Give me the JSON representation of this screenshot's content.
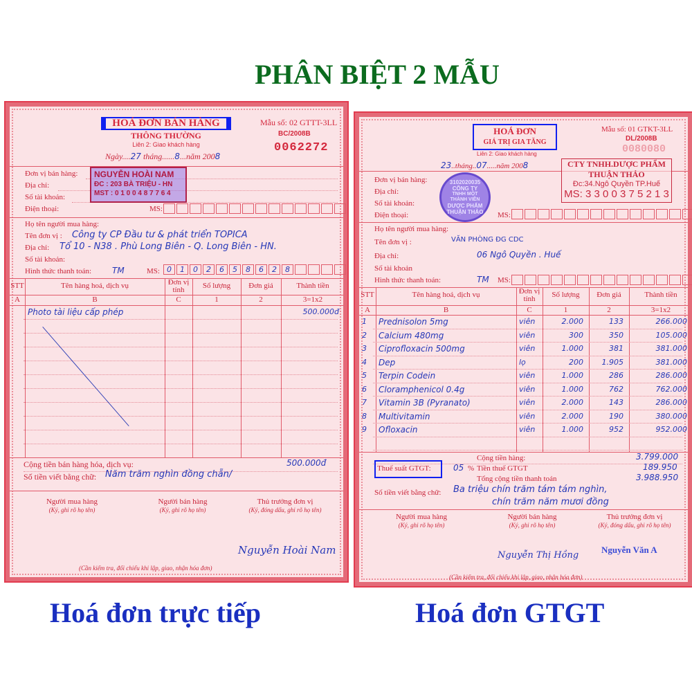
{
  "title": "PHÂN BIỆT 2 MẪU",
  "captions": {
    "left": "Hoá đơn trực tiếp",
    "right": "Hoá đơn GTGT"
  },
  "colors": {
    "title": "#0b6b1e",
    "caption": "#1a2fc0",
    "highlight_box": "#1020f0",
    "invoice_red": "#d4283d",
    "ink": "#2638b8"
  },
  "left_invoice": {
    "title": "HOÁ ĐƠN BÁN HÀNG",
    "subtitle": "THÔNG THƯỜNG",
    "copy": "Liên 2: Giao khách hàng",
    "form_no": "Mẫu số: 02 GTTT-3LL",
    "series": "BC/2008B",
    "number": "0062272",
    "date": {
      "day_label": "Ngày",
      "day": "27",
      "month_label": "tháng",
      "month": "8",
      "year_label": "năm 200",
      "year": "8"
    },
    "seller_labels": [
      "Đơn vị bán hàng:",
      "Địa chỉ:",
      "Số tài khoản:",
      "Điện thoại:"
    ],
    "ms_label": "MS:",
    "seller_stamp": {
      "name": "NGUYỄN HOÀI NAM",
      "address": "ĐC : 203 BÀ TRIỆU - HN",
      "tax": "MST : 0 1 0 0 4 8 7 7 6 4"
    },
    "buyer": {
      "name_label": "Họ tên người mua hàng:",
      "unit_label": "Tên đơn vị :",
      "unit": "Công ty CP Đầu tư & phát triển TOPICA",
      "address_label": "Địa chỉ:",
      "address": "Tổ 10 - N38 . Phù Long Biên - Q. Long Biên - HN.",
      "account_label": "Số tài khoản:",
      "payment_label": "Hình thức thanh toán:",
      "payment": "TM",
      "ms_digits": [
        "0",
        "1",
        "0",
        "2",
        "6",
        "5",
        "8",
        "6",
        "2",
        "8"
      ]
    },
    "table": {
      "headers": [
        "STT",
        "Tên hàng hoá, dịch vụ",
        "Đơn vị tính",
        "Số lượng",
        "Đơn giá",
        "Thành tiền"
      ],
      "codes": [
        "A",
        "B",
        "C",
        "1",
        "2",
        "3=1x2"
      ],
      "rows": [
        [
          "",
          "Photo tài liệu cấp phép",
          "",
          "",
          "",
          "500.000đ"
        ]
      ]
    },
    "total_label": "Cộng tiền bán hàng hóa, dịch vụ:",
    "total": "500.000đ",
    "words_label": "Số tiền viết bằng chữ:",
    "words": "Năm trăm nghìn đồng chẵn/",
    "signers": [
      {
        "role": "Người mua hàng",
        "note": "(Ký, ghi rõ họ tên)"
      },
      {
        "role": "Người bán hàng",
        "note": "(Ký, ghi rõ họ tên)"
      },
      {
        "role": "Thủ trưởng đơn vị",
        "note": "(Ký, đóng dấu, ghi rõ họ tên)"
      }
    ],
    "signature_name": "Nguyễn Hoài Nam",
    "footer": "(Cần kiểm tra, đối chiếu khi lập, giao, nhận hóa đơn)"
  },
  "right_invoice": {
    "title": "HOÁ ĐƠN",
    "subtitle": "GIÁ TRỊ GIA TĂNG",
    "copy": "Liên 2: Giao khách hàng",
    "form_no": "Mẫu số: 01 GTKT-3LL",
    "series": "DL/2008B",
    "number": "0080080",
    "date": {
      "day": "23",
      "month_label": "tháng",
      "month": "07",
      "year_label": "năm 200",
      "year": "8"
    },
    "seller_labels": [
      "Đơn vị bán hàng:",
      "Địa chỉ:",
      "Số tài khoản:",
      "Điện thoại:"
    ],
    "ms_label": "MS:",
    "seal": {
      "lines": [
        "3102020035",
        "CÔNG TY",
        "TNHH MỘT THÀNH VIÊN",
        "DƯỢC PHẨM",
        "THUẬN THẢO"
      ]
    },
    "seller_stamp": {
      "line1": "CTY TNHH.DƯỢC PHẨM",
      "line2": "THUẬN THẢO",
      "address": "Đc:34.Ngô Quyền TP.Huế",
      "tax": "MS: 3 3 0 0 3 7 5 2 1 3"
    },
    "buyer": {
      "name_label": "Họ tên người mua hàng:",
      "unit_label": "Tên đơn vị :",
      "unit": "VĂN PHÒNG ĐG CDC",
      "address_label": "Địa chỉ:",
      "address": "06 Ngô Quyền . Huế",
      "account_label": "Số tài khoản",
      "payment_label": "Hình thức thanh toán:",
      "payment": "TM"
    },
    "table": {
      "headers": [
        "STT",
        "Tên hàng hoá, dịch vụ",
        "Đơn vị tính",
        "Số lượng",
        "Đơn giá",
        "Thành tiền"
      ],
      "codes": [
        "A",
        "B",
        "C",
        "1",
        "2",
        "3=1x2"
      ],
      "rows": [
        [
          "1",
          "Prednisolon 5mg",
          "viên",
          "2.000",
          "133",
          "266.000"
        ],
        [
          "2",
          "Calcium 480mg",
          "viên",
          "300",
          "350",
          "105.000"
        ],
        [
          "3",
          "Ciprofloxacin 500mg",
          "viên",
          "1.000",
          "381",
          "381.000"
        ],
        [
          "4",
          "Dep",
          "lọ",
          "200",
          "1.905",
          "381.000"
        ],
        [
          "5",
          "Terpin Codein",
          "viên",
          "1.000",
          "286",
          "286.000"
        ],
        [
          "6",
          "Cloramphenicol 0.4g",
          "viên",
          "1.000",
          "762",
          "762.000"
        ],
        [
          "7",
          "Vitamin 3B (Pyranato)",
          "viên",
          "2.000",
          "143",
          "286.000"
        ],
        [
          "8",
          "Multivitamin",
          "viên",
          "2.000",
          "190",
          "380.000"
        ],
        [
          "9",
          "Ofloxacin",
          "viên",
          "1.000",
          "952",
          "952.000"
        ]
      ]
    },
    "subtotal_label": "Cộng tiền hàng:",
    "subtotal": "3.799.000",
    "vat_rate_label": "Thuế suất GTGT:",
    "vat_rate": "05",
    "vat_pct": "%",
    "vat_label": "Tiền thuế GTGT",
    "vat": "189.950",
    "grand_label": "Tổng cộng tiền thanh toán",
    "grand": "3.988.950",
    "words_label": "Số tiền viết bằng chữ:",
    "words_1": "Ba triệu chín trăm tám tám nghìn,",
    "words_2": "chín trăm năm mươi đồng",
    "signers": [
      {
        "role": "Người mua hàng",
        "note": "(Ký, ghi rõ họ tên)"
      },
      {
        "role": "Người bán hàng",
        "note": "(Ký, ghi rõ họ tên)"
      },
      {
        "role": "Thủ trưởng đơn vị",
        "note": "(Ký, đóng dấu, ghi rõ họ tên)"
      }
    ],
    "seller_signature_name": "Nguyễn Thị Hồng",
    "director_name": "Nguyễn Văn A",
    "footer": "(Cần kiểm tra, đối chiếu khi lập, giao, nhận hóa đơn)"
  }
}
